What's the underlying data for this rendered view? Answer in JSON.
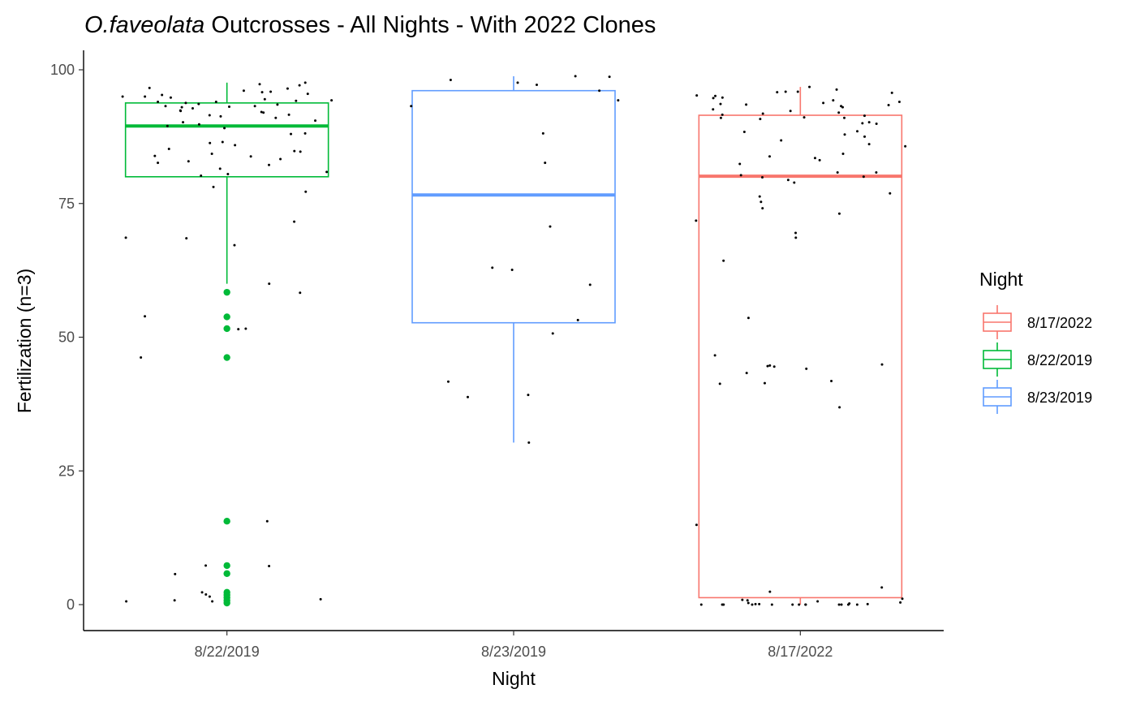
{
  "chart_data": {
    "type": "boxplot",
    "title_italic": "O.faveolata",
    "title_rest": " Outcrosses - All Nights - With 2022 Clones",
    "xlabel": "Night",
    "ylabel": "Fertilization (n=3)",
    "ylim": [
      -5,
      103
    ],
    "yticks": [
      0,
      25,
      50,
      75,
      100
    ],
    "categories": [
      "8/22/2019",
      "8/23/2019",
      "8/17/2022"
    ],
    "grid": false,
    "legend": {
      "title": "Night",
      "position": "right",
      "items": [
        {
          "label": "8/17/2022",
          "color": "#F8766D"
        },
        {
          "label": "8/22/2019",
          "color": "#00BA38"
        },
        {
          "label": "8/23/2019",
          "color": "#619CFF"
        }
      ]
    },
    "boxes": [
      {
        "category": "8/22/2019",
        "color": "#00BA38",
        "whisker_low": 60.0,
        "q1": 80.0,
        "median": 89.5,
        "q3": 93.8,
        "whisker_high": 97.6,
        "outliers": [
          58.4,
          53.8,
          51.6,
          46.2,
          15.6,
          7.3,
          5.8,
          2.3,
          1.8,
          1.3,
          0.8,
          0.3
        ]
      },
      {
        "category": "8/23/2019",
        "color": "#619CFF",
        "whisker_low": 30.3,
        "q1": 52.7,
        "median": 76.6,
        "q3": 96.1,
        "whisker_high": 98.8,
        "outliers": []
      },
      {
        "category": "8/17/2022",
        "color": "#F8766D",
        "whisker_low": 0.0,
        "q1": 1.3,
        "median": 80.1,
        "q3": 91.5,
        "whisker_high": 96.8,
        "outliers": []
      }
    ],
    "jitter_points": [
      {
        "category": "8/22/2019",
        "values": [
          97.3,
          93.8,
          93.2,
          94.3,
          94.5,
          92.0,
          94.0,
          95.5,
          95.9,
          94.2,
          93.5,
          92.8,
          91.6,
          95.3,
          96.1,
          94.8,
          93.2,
          96.5,
          97.6,
          97.1,
          95.0,
          91.3,
          91.0,
          93.6,
          92.4,
          89.8,
          90.5,
          88.1,
          86.3,
          84.3,
          84.8,
          82.6,
          83.9,
          82.9,
          80.2,
          80.5,
          80.9,
          81.5,
          83.3,
          85.2,
          78.1,
          77.2,
          71.6,
          68.5,
          67.2,
          58.3,
          60.0,
          53.9,
          51.6,
          46.2,
          15.6,
          7.3,
          7.2,
          5.7,
          2.3,
          1.9,
          1.5,
          1.0,
          0.6,
          0.6,
          0.8,
          96.6,
          95.8,
          95.0,
          93.0,
          92.3,
          91.5,
          89.5,
          88.0,
          86.5,
          85.9,
          84.7,
          83.8,
          82.2,
          68.6,
          51.5,
          94.0,
          93.1,
          92.1,
          90.2,
          89.1
        ]
      },
      {
        "category": "8/23/2019",
        "values": [
          98.7,
          98.1,
          97.6,
          96.1,
          97.2,
          93.2,
          88.1,
          82.6,
          63.0,
          53.2,
          50.7,
          38.8,
          98.8,
          94.3,
          62.6,
          41.7,
          39.2,
          70.7,
          59.8,
          30.3
        ]
      },
      {
        "category": "8/17/2022",
        "values": [
          93.2,
          92.6,
          95.7,
          94.7,
          93.5,
          92.3,
          91.4,
          90.8,
          89.9,
          88.4,
          87.5,
          86.8,
          95.9,
          95.2,
          91.8,
          91.0,
          90.2,
          90.0,
          85.7,
          83.1,
          80.8,
          76.3,
          71.8,
          53.6,
          44.1,
          41.8,
          36.9,
          96.3,
          95.9,
          94.3,
          93.4,
          92.0,
          91.6,
          83.5,
          82.4,
          80.8,
          79.4,
          74.1,
          73.1,
          44.7,
          44.5,
          43.3,
          41.4,
          41.3,
          96.8,
          94.0,
          93.0,
          91.1,
          86.1,
          80.0,
          79.9,
          69.5,
          68.6,
          64.3,
          44.9,
          44.6,
          14.9,
          93.8,
          95.8,
          95.1,
          94.8,
          93.6,
          91.0,
          88.5,
          87.9,
          84.3,
          83.8,
          80.3,
          78.9,
          76.9,
          75.3,
          46.6,
          3.2,
          2.4,
          1.1,
          0.9,
          0.8,
          0.6,
          0.4,
          0.3,
          0.2,
          0.1,
          0.1,
          0.1,
          0.0,
          0.0,
          0.0,
          0.0,
          0.0,
          0.0,
          0.0,
          0.0,
          0.0,
          0.0,
          0.0,
          0.0,
          0.0
        ]
      }
    ]
  }
}
